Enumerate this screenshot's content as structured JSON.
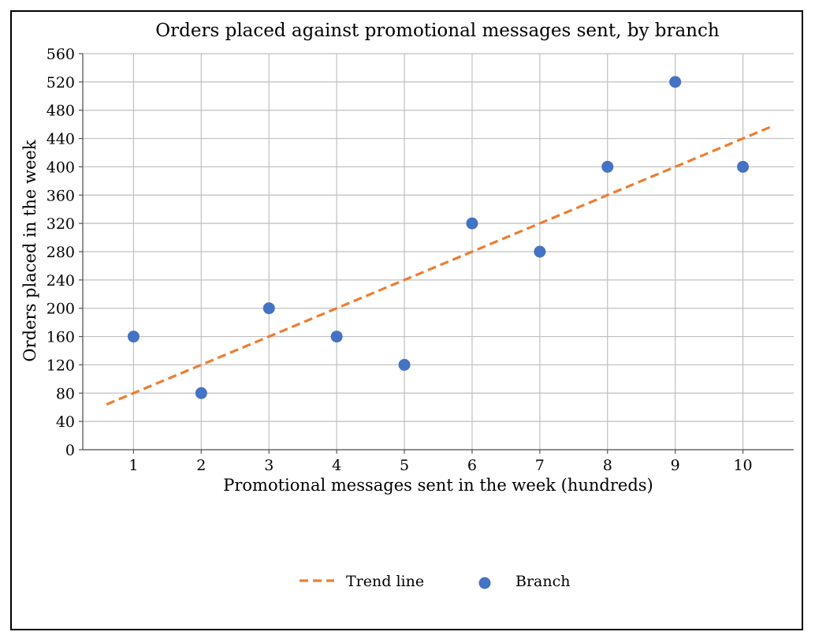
{
  "chart_data": {
    "type": "scatter",
    "title": "Orders placed against promotional messages sent, by branch",
    "xlabel": "Promotional messages sent in the week (hundreds)",
    "ylabel": "Orders placed in the week",
    "xlim": [
      0.25,
      10.75
    ],
    "ylim": [
      0,
      560
    ],
    "x_ticks": [
      1,
      2,
      3,
      4,
      5,
      6,
      7,
      8,
      9,
      10
    ],
    "y_ticks": [
      0,
      40,
      80,
      120,
      160,
      200,
      240,
      280,
      320,
      360,
      400,
      440,
      480,
      520,
      560
    ],
    "grid": true,
    "legend_position": "bottom-center",
    "series": [
      {
        "name": "Branch",
        "kind": "points",
        "color": "#4472C4",
        "points": [
          {
            "x": 1,
            "y": 160
          },
          {
            "x": 2,
            "y": 80
          },
          {
            "x": 3,
            "y": 200
          },
          {
            "x": 4,
            "y": 160
          },
          {
            "x": 5,
            "y": 120
          },
          {
            "x": 6,
            "y": 320
          },
          {
            "x": 7,
            "y": 280
          },
          {
            "x": 8,
            "y": 400
          },
          {
            "x": 9,
            "y": 520
          },
          {
            "x": 10,
            "y": 400
          }
        ]
      },
      {
        "name": "Trend line",
        "kind": "dashed-line",
        "color": "#ED7D31",
        "points": [
          {
            "x": 0.6,
            "y": 64
          },
          {
            "x": 10.4,
            "y": 456
          }
        ]
      }
    ],
    "legend": [
      {
        "label": "Trend line",
        "series": "Trend line"
      },
      {
        "label": "Branch",
        "series": "Branch"
      }
    ]
  }
}
